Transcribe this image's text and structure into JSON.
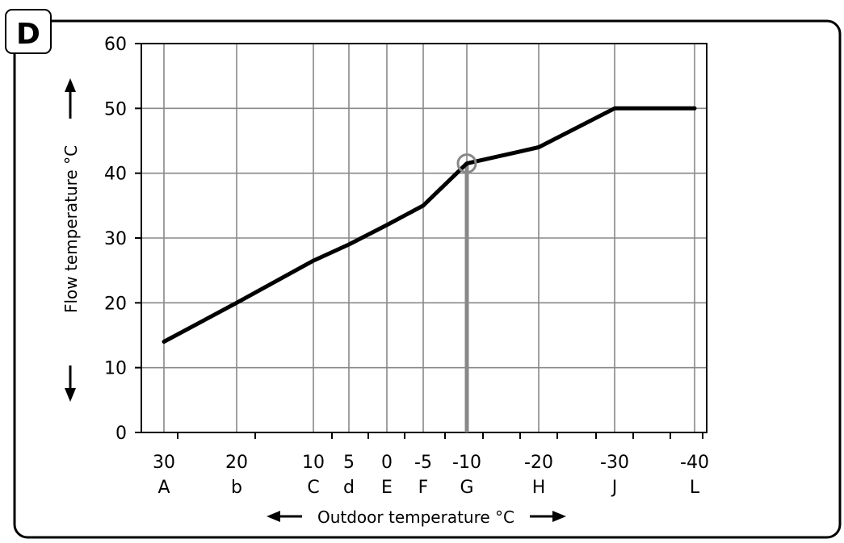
{
  "badge": {
    "letter": "D"
  },
  "chart_data": {
    "type": "line",
    "ylabel": "Flow temperature °C",
    "xlabel": "Outdoor temperature °C",
    "ylim": [
      0,
      60
    ],
    "y_ticks": [
      0,
      10,
      20,
      30,
      40,
      50,
      60
    ],
    "x_ticks": [
      {
        "value": "30",
        "letter": "A"
      },
      {
        "value": "20",
        "letter": "b"
      },
      {
        "value": "10",
        "letter": "C"
      },
      {
        "value": "5",
        "letter": "d"
      },
      {
        "value": "0",
        "letter": "E"
      },
      {
        "value": "-5",
        "letter": "F"
      },
      {
        "value": "-10",
        "letter": "G"
      },
      {
        "value": "-20",
        "letter": "H"
      },
      {
        "value": "-30",
        "letter": "J"
      },
      {
        "value": "-40",
        "letter": "L"
      }
    ],
    "grid": true,
    "series": [
      {
        "x": [
          30,
          20,
          10,
          5,
          0,
          -5,
          -10,
          -14,
          -20,
          -30,
          -40
        ],
        "y": [
          14,
          20,
          26.5,
          29,
          32,
          35,
          41.5,
          42.5,
          44,
          50,
          50
        ]
      }
    ],
    "highlight": {
      "x": -10,
      "y": 41.5
    },
    "colors": {
      "line": "#000000",
      "grid": "#888888",
      "highlight": "#888888"
    }
  }
}
